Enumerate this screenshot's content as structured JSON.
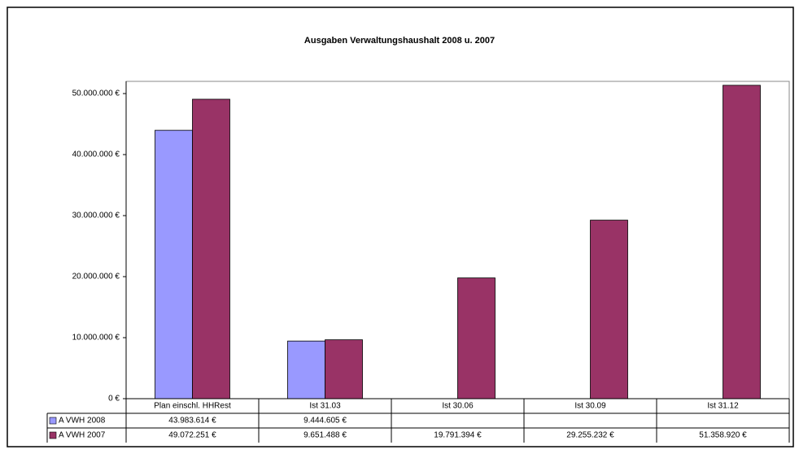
{
  "chart_data": {
    "type": "bar",
    "title": "Ausgaben Verwaltungshaushalt 2008  u. 2007",
    "categories": [
      "Plan einschl. HHRest",
      "Ist 31.03",
      "Ist 30.06",
      "Ist 30.09",
      "Ist 31.12"
    ],
    "series": [
      {
        "name": "A VWH 2008",
        "color": "#9999ff",
        "values": [
          43983614,
          9444605,
          null,
          null,
          null
        ],
        "value_labels": [
          "43.983.614 €",
          "9.444.605 €",
          null,
          null,
          null
        ]
      },
      {
        "name": "A VWH 2007",
        "color": "#993366",
        "values": [
          49072251,
          9651488,
          19791394,
          29255232,
          51358920
        ],
        "value_labels": [
          "49.072.251 €",
          "9.651.488 €",
          "19.791.394 €",
          "29.255.232 €",
          "51.358.920 €"
        ]
      }
    ],
    "ylim": [
      0,
      52000000
    ],
    "yticks": [
      {
        "value": 0,
        "label": "0 €"
      },
      {
        "value": 10000000,
        "label": "10.000.000 €"
      },
      {
        "value": 20000000,
        "label": "20.000.000 €"
      },
      {
        "value": 30000000,
        "label": "30.000.000 €"
      },
      {
        "value": 40000000,
        "label": "40.000.000 €"
      },
      {
        "value": 50000000,
        "label": "50.000.000 €"
      }
    ],
    "grid": false
  }
}
